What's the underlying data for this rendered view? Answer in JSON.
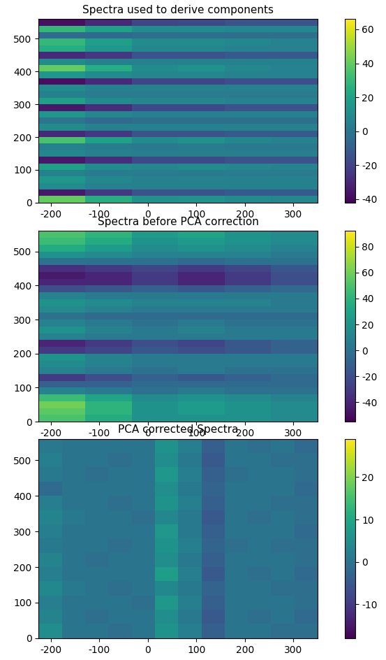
{
  "chart_data": [
    {
      "type": "heatmap",
      "title": "Spectra used to derive components",
      "xlim": [
        -225,
        350
      ],
      "ylim": [
        0,
        560
      ],
      "xticks": [
        -200,
        -100,
        0,
        100,
        200,
        300
      ],
      "yticks": [
        0,
        100,
        200,
        300,
        400,
        500
      ],
      "colorbar_range": [
        -42,
        66
      ],
      "colorbar_ticks": [
        -40,
        -20,
        0,
        20,
        40,
        60
      ],
      "cells": [
        [
          40,
          25,
          12,
          14,
          10,
          8
        ],
        [
          -35,
          -25,
          -15,
          -15,
          -12,
          -12
        ],
        [
          10,
          5,
          5,
          5,
          5,
          5
        ],
        [
          15,
          8,
          5,
          6,
          5,
          5
        ],
        [
          5,
          3,
          3,
          3,
          3,
          3
        ],
        [
          20,
          10,
          8,
          10,
          8,
          6
        ],
        [
          -35,
          -28,
          -18,
          -18,
          -15,
          -15
        ],
        [
          8,
          5,
          4,
          4,
          4,
          4
        ],
        [
          5,
          3,
          2,
          3,
          2,
          2
        ],
        [
          35,
          20,
          10,
          12,
          8,
          6
        ],
        [
          -30,
          -25,
          -15,
          -15,
          -12,
          -12
        ],
        [
          10,
          5,
          5,
          5,
          5,
          5
        ],
        [
          0,
          -5,
          -3,
          -3,
          -3,
          -3
        ],
        [
          15,
          8,
          5,
          5,
          5,
          5
        ],
        [
          -35,
          -28,
          -18,
          -18,
          -15,
          -15
        ],
        [
          20,
          10,
          8,
          8,
          6,
          6
        ],
        [
          5,
          3,
          3,
          3,
          3,
          3
        ],
        [
          10,
          5,
          5,
          5,
          5,
          5
        ],
        [
          -38,
          -30,
          -20,
          -20,
          -16,
          -16
        ],
        [
          15,
          10,
          8,
          8,
          6,
          6
        ],
        [
          40,
          25,
          10,
          12,
          8,
          6
        ],
        [
          10,
          5,
          5,
          5,
          5,
          5
        ],
        [
          -30,
          -25,
          -15,
          -15,
          -12,
          -12
        ],
        [
          25,
          15,
          8,
          8,
          6,
          6
        ],
        [
          30,
          18,
          10,
          10,
          8,
          6
        ],
        [
          -5,
          -5,
          -3,
          -3,
          -3,
          -3
        ],
        [
          30,
          20,
          10,
          10,
          8,
          8
        ],
        [
          -38,
          -30,
          -20,
          -18,
          -15,
          -15
        ]
      ]
    },
    {
      "type": "heatmap",
      "title": "Spectra before PCA correction",
      "xlim": [
        -225,
        350
      ],
      "ylim": [
        0,
        560
      ],
      "xticks": [
        -200,
        -100,
        0,
        100,
        200,
        300
      ],
      "yticks": [
        0,
        100,
        200,
        300,
        400,
        500
      ],
      "colorbar_range": [
        -55,
        92
      ],
      "colorbar_ticks": [
        -40,
        -20,
        0,
        20,
        40,
        60,
        80
      ],
      "cells": [
        [
          50,
          35,
          20,
          20,
          20,
          15
        ],
        [
          55,
          40,
          20,
          25,
          20,
          15
        ],
        [
          60,
          40,
          20,
          25,
          20,
          15
        ],
        [
          45,
          30,
          15,
          20,
          15,
          10
        ],
        [
          10,
          5,
          0,
          5,
          0,
          0
        ],
        [
          -10,
          -10,
          -5,
          -5,
          -5,
          -5
        ],
        [
          -30,
          -20,
          -10,
          -15,
          -10,
          -5
        ],
        [
          10,
          5,
          0,
          5,
          0,
          0
        ],
        [
          15,
          10,
          5,
          5,
          5,
          5
        ],
        [
          20,
          10,
          5,
          5,
          5,
          5
        ],
        [
          -30,
          -25,
          -15,
          -20,
          -15,
          -10
        ],
        [
          -40,
          -30,
          -20,
          -25,
          -15,
          -10
        ],
        [
          10,
          5,
          5,
          5,
          5,
          5
        ],
        [
          20,
          10,
          5,
          10,
          5,
          5
        ],
        [
          10,
          5,
          0,
          5,
          0,
          0
        ],
        [
          0,
          -5,
          -5,
          -5,
          -5,
          -5
        ],
        [
          15,
          10,
          5,
          5,
          5,
          5
        ],
        [
          20,
          15,
          10,
          10,
          10,
          5
        ],
        [
          10,
          5,
          5,
          5,
          5,
          5
        ],
        [
          -20,
          -15,
          -10,
          -15,
          -10,
          -5
        ],
        [
          -40,
          -40,
          -30,
          -40,
          -30,
          -20
        ],
        [
          -45,
          -40,
          -30,
          -40,
          -30,
          -20
        ],
        [
          -35,
          -30,
          -25,
          -30,
          -25,
          -15
        ],
        [
          0,
          0,
          0,
          -5,
          0,
          0
        ],
        [
          20,
          15,
          10,
          10,
          10,
          5
        ],
        [
          35,
          25,
          15,
          20,
          15,
          10
        ],
        [
          45,
          35,
          20,
          25,
          20,
          15
        ],
        [
          50,
          40,
          25,
          30,
          20,
          15
        ]
      ]
    },
    {
      "type": "heatmap",
      "title": "PCA corrected Spectra",
      "xlim": [
        -225,
        350
      ],
      "ylim": [
        0,
        560
      ],
      "xticks": [
        -200,
        -100,
        0,
        100,
        200,
        300
      ],
      "yticks": [
        0,
        100,
        200,
        300,
        400,
        500
      ],
      "colorbar_range": [
        -18,
        29
      ],
      "colorbar_ticks": [
        -10,
        0,
        10,
        20
      ],
      "cells": [
        [
          5,
          0,
          0,
          -1,
          0,
          6,
          2,
          -4,
          0,
          0,
          -1,
          -1
        ],
        [
          3,
          0,
          -1,
          0,
          0,
          5,
          1,
          -5,
          0,
          -1,
          0,
          -2
        ],
        [
          2,
          0,
          0,
          0,
          -1,
          7,
          2,
          -4,
          0,
          0,
          0,
          -1
        ],
        [
          4,
          1,
          0,
          -1,
          0,
          4,
          1,
          -3,
          0,
          0,
          -1,
          -1
        ],
        [
          2,
          0,
          0,
          0,
          0,
          8,
          2,
          -5,
          0,
          -1,
          0,
          -2
        ],
        [
          3,
          0,
          -1,
          0,
          0,
          5,
          1,
          -4,
          0,
          0,
          0,
          -1
        ],
        [
          1,
          0,
          0,
          -1,
          0,
          6,
          2,
          -3,
          -1,
          0,
          -1,
          -1
        ],
        [
          2,
          0,
          0,
          0,
          0,
          7,
          1,
          -4,
          0,
          0,
          0,
          -2
        ],
        [
          3,
          1,
          0,
          0,
          -1,
          4,
          1,
          -5,
          0,
          -1,
          0,
          -1
        ],
        [
          2,
          0,
          0,
          -1,
          0,
          6,
          2,
          -4,
          0,
          0,
          -1,
          -1
        ],
        [
          -2,
          0,
          0,
          0,
          0,
          5,
          1,
          -3,
          0,
          0,
          0,
          -2
        ],
        [
          1,
          0,
          -1,
          0,
          0,
          7,
          2,
          -4,
          -1,
          0,
          0,
          -1
        ],
        [
          2,
          0,
          0,
          -1,
          0,
          5,
          1,
          -5,
          0,
          0,
          -1,
          -1
        ],
        [
          1,
          0,
          0,
          0,
          0,
          6,
          2,
          -4,
          0,
          -1,
          0,
          -2
        ]
      ]
    }
  ]
}
